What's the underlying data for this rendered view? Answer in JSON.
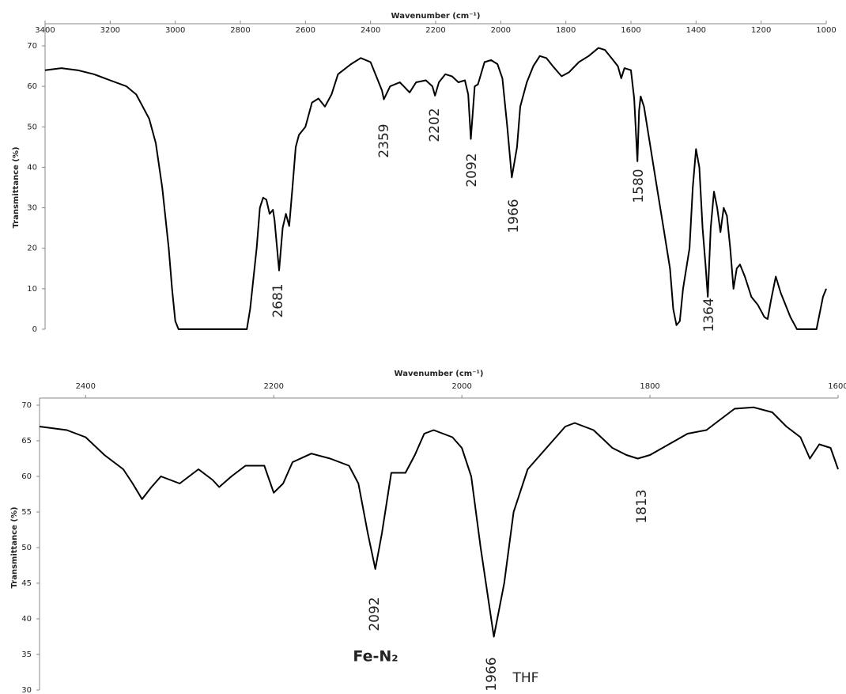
{
  "chart_data": [
    {
      "type": "line",
      "x_label": "Wavenumber (cm⁻¹)",
      "y_label": "Transmittance (%)",
      "xlim": [
        3400,
        1000
      ],
      "ylim": [
        0,
        70
      ],
      "xticks": [
        3400,
        3200,
        3000,
        2800,
        2600,
        2400,
        2200,
        2000,
        1800,
        1600,
        1400,
        1200,
        1000
      ],
      "yticks": [
        0,
        10,
        20,
        30,
        40,
        50,
        60,
        70
      ],
      "series": [
        {
          "color": "#000000",
          "x": [
            3400,
            3350,
            3300,
            3250,
            3200,
            3150,
            3120,
            3100,
            3080,
            3060,
            3040,
            3020,
            3010,
            3000,
            2990,
            2900,
            2800,
            2780,
            2770,
            2750,
            2740,
            2730,
            2720,
            2710,
            2700,
            2695,
            2681,
            2670,
            2660,
            2650,
            2640,
            2630,
            2620,
            2600,
            2580,
            2560,
            2540,
            2520,
            2500,
            2460,
            2430,
            2400,
            2380,
            2365,
            2359,
            2340,
            2310,
            2280,
            2260,
            2230,
            2210,
            2202,
            2190,
            2170,
            2150,
            2130,
            2110,
            2100,
            2092,
            2080,
            2070,
            2050,
            2030,
            2010,
            1995,
            1980,
            1966,
            1950,
            1940,
            1920,
            1900,
            1880,
            1860,
            1840,
            1813,
            1790,
            1760,
            1730,
            1700,
            1680,
            1660,
            1640,
            1630,
            1620,
            1600,
            1590,
            1580,
            1575,
            1570,
            1560,
            1540,
            1520,
            1500,
            1480,
            1470,
            1460,
            1450,
            1440,
            1420,
            1410,
            1400,
            1390,
            1380,
            1370,
            1364,
            1355,
            1345,
            1335,
            1325,
            1315,
            1305,
            1295,
            1285,
            1275,
            1265,
            1250,
            1230,
            1210,
            1190,
            1180,
            1170,
            1155,
            1140,
            1130,
            1110,
            1090,
            1050,
            1030,
            1020,
            1010,
            1000
          ],
          "values": [
            64,
            64.5,
            64,
            63,
            61.5,
            60,
            58,
            55,
            52,
            46,
            35,
            20,
            10,
            2,
            0,
            0,
            0,
            0,
            5,
            20,
            30,
            32.5,
            32,
            28.5,
            29.5,
            27,
            14.5,
            25,
            28.5,
            25.5,
            35,
            45,
            48,
            50,
            56,
            57,
            55,
            58,
            63,
            65.5,
            67,
            66,
            62,
            59,
            56.8,
            60,
            61,
            58.5,
            61,
            61.5,
            60,
            57.7,
            61,
            63,
            62.5,
            61,
            61.5,
            58,
            47,
            60,
            60.5,
            66,
            66.5,
            65.5,
            62,
            50,
            37.5,
            45,
            55,
            61,
            65,
            67.5,
            67,
            65,
            62.5,
            63.5,
            66,
            67.5,
            69.5,
            69,
            67,
            65,
            62,
            64.5,
            64,
            57,
            41.5,
            54,
            57.5,
            55,
            45,
            35,
            25,
            15,
            5,
            1,
            2,
            10,
            20,
            35,
            44.5,
            40,
            25,
            15,
            8,
            25,
            34,
            30,
            24,
            30,
            28,
            20,
            10,
            15,
            16,
            13,
            8,
            6,
            3,
            2.5,
            7,
            13,
            9,
            7,
            3,
            0,
            0,
            0,
            4,
            8,
            10
          ]
        }
      ],
      "annotations": [
        "2681",
        "2359",
        "2202",
        "2092",
        "1966",
        "1580",
        "1364"
      ]
    },
    {
      "type": "line",
      "x_label": "Wavenumber (cm⁻¹)",
      "y_label": "Transmittance (%)",
      "xlim": [
        2449,
        1600
      ],
      "ylim": [
        30,
        70
      ],
      "xticks": [
        2400,
        2200,
        2000,
        1800,
        1600
      ],
      "yticks": [
        30,
        35,
        40,
        45,
        50,
        55,
        60,
        65,
        70
      ],
      "series": [
        {
          "color": "#000000",
          "x": [
            2449,
            2420,
            2400,
            2380,
            2360,
            2350,
            2340,
            2330,
            2320,
            2300,
            2280,
            2265,
            2258,
            2245,
            2230,
            2210,
            2200,
            2190,
            2180,
            2160,
            2140,
            2120,
            2110,
            2100,
            2092,
            2085,
            2075,
            2060,
            2050,
            2040,
            2030,
            2010,
            2000,
            1990,
            1980,
            1966,
            1955,
            1945,
            1930,
            1910,
            1890,
            1880,
            1860,
            1840,
            1825,
            1813,
            1800,
            1780,
            1760,
            1740,
            1730,
            1710,
            1690,
            1670,
            1655,
            1640,
            1630,
            1620,
            1608,
            1600
          ],
          "values": [
            67,
            66.5,
            65.5,
            63,
            61,
            59,
            56.8,
            58.5,
            60,
            59,
            61,
            59.5,
            58.5,
            60,
            61.5,
            61.5,
            57.7,
            59,
            62,
            63.2,
            62.5,
            61.5,
            59,
            52,
            47,
            52,
            60.5,
            60.5,
            63,
            66,
            66.5,
            65.5,
            64,
            60,
            50,
            37.5,
            45,
            55,
            61,
            64,
            67,
            67.5,
            66.5,
            64,
            63,
            62.5,
            63,
            64.5,
            66,
            66.5,
            67.5,
            69.5,
            69.7,
            69,
            67,
            65.5,
            62.5,
            64.5,
            64,
            61
          ]
        }
      ],
      "annotations": [
        "2092",
        "1813",
        "1966",
        "THF",
        "Fe-N₂"
      ]
    }
  ]
}
